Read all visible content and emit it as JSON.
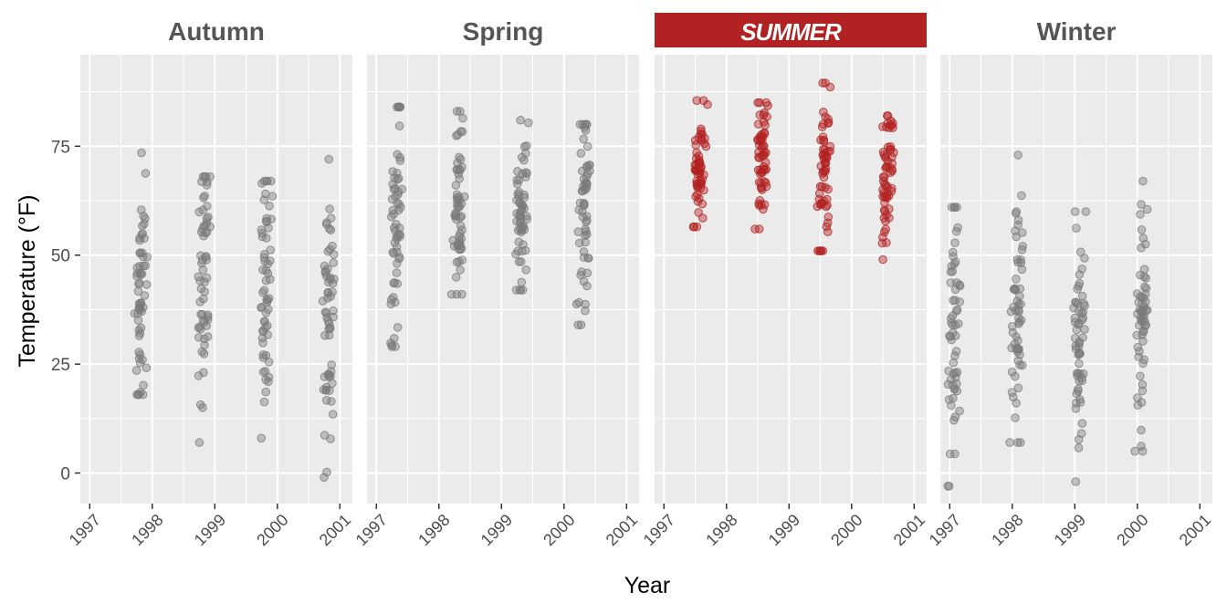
{
  "chart_data": {
    "type": "scatter",
    "title": "",
    "xlabel": "Year",
    "ylabel": "Temperature (°F)",
    "xlim": [
      1996.85,
      2001.2
    ],
    "ylim": [
      -7,
      96
    ],
    "x_ticks": [
      "1997",
      "1998",
      "1999",
      "2000",
      "2001"
    ],
    "y_ticks": [
      0,
      25,
      50,
      75
    ],
    "grid": true,
    "legend": "none",
    "highlight_color": "#b22222",
    "base_color": "#7a7a7a",
    "panels": [
      {
        "name": "Autumn",
        "highlight": false,
        "clusters": [
          {
            "x": 1997.82,
            "min": 18,
            "max": 73.5,
            "mean": 42,
            "n": 60
          },
          {
            "x": 1998.82,
            "min": 7,
            "max": 68,
            "mean": 45,
            "n": 60
          },
          {
            "x": 1999.82,
            "min": 8,
            "max": 67,
            "mean": 43,
            "n": 60
          },
          {
            "x": 2000.82,
            "min": -1,
            "max": 72,
            "mean": 38,
            "n": 60
          }
        ]
      },
      {
        "name": "Spring",
        "highlight": false,
        "clusters": [
          {
            "x": 1997.32,
            "min": 29,
            "max": 84,
            "mean": 57,
            "n": 60
          },
          {
            "x": 1998.32,
            "min": 41,
            "max": 83,
            "mean": 61,
            "n": 60
          },
          {
            "x": 1999.32,
            "min": 42,
            "max": 81,
            "mean": 60,
            "n": 60
          },
          {
            "x": 2000.32,
            "min": 34,
            "max": 80,
            "mean": 59,
            "n": 60
          }
        ]
      },
      {
        "name": "SUMMER",
        "highlight": true,
        "clusters": [
          {
            "x": 1997.57,
            "min": 56.5,
            "max": 85.5,
            "mean": 70,
            "n": 60
          },
          {
            "x": 1998.57,
            "min": 56,
            "max": 85,
            "mean": 72,
            "n": 60
          },
          {
            "x": 1999.57,
            "min": 51,
            "max": 89.5,
            "mean": 71,
            "n": 60
          },
          {
            "x": 2000.57,
            "min": 49,
            "max": 82,
            "mean": 69,
            "n": 60
          }
        ]
      },
      {
        "name": "Winter",
        "highlight": false,
        "clusters": [
          {
            "x": 1997.07,
            "min": -3,
            "max": 61,
            "mean": 30,
            "n": 60
          },
          {
            "x": 1998.07,
            "min": 7,
            "max": 73,
            "mean": 34,
            "n": 60
          },
          {
            "x": 1999.07,
            "min": -2,
            "max": 60,
            "mean": 31,
            "n": 60
          },
          {
            "x": 2000.07,
            "min": 5,
            "max": 67,
            "mean": 34,
            "n": 60
          }
        ]
      }
    ]
  }
}
